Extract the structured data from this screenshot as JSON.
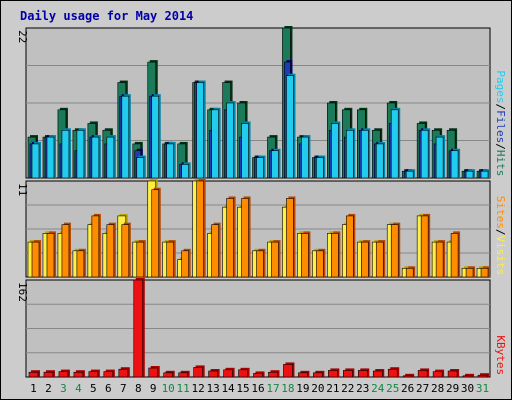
{
  "title": "Daily usage for May 2014",
  "colors": {
    "hits": "#1a7a5a",
    "files": "#1e3cb4",
    "pages": "#22ccee",
    "visits": "#ffee44",
    "sites": "#ff8c00",
    "kbytes": "#ee1111",
    "weekend_day": "#118844",
    "weekday": "#000000"
  },
  "chart_data": [
    {
      "type": "bar",
      "title": "Daily usage for May 2014",
      "categories": [
        "1",
        "2",
        "3",
        "4",
        "5",
        "6",
        "7",
        "8",
        "9",
        "10",
        "11",
        "12",
        "13",
        "14",
        "15",
        "16",
        "17",
        "18",
        "19",
        "20",
        "21",
        "22",
        "23",
        "24",
        "25",
        "26",
        "27",
        "28",
        "29",
        "30",
        "31"
      ],
      "ylim": [
        0,
        22
      ],
      "axis_max_label": "22",
      "legend": [
        "Hits",
        "Files",
        "Pages"
      ],
      "legend_sep": "/",
      "series": [
        {
          "name": "Hits",
          "values": [
            6,
            6,
            10,
            7,
            8,
            7,
            14,
            5,
            17,
            5,
            5,
            14,
            10,
            14,
            11,
            3,
            6,
            22,
            6,
            3,
            11,
            10,
            10,
            7,
            11,
            1,
            8,
            7,
            7,
            1,
            1
          ]
        },
        {
          "name": "Files",
          "values": [
            5,
            6,
            5,
            4,
            6,
            5,
            12,
            4,
            12,
            5,
            2,
            14,
            7,
            10,
            6,
            3,
            4,
            17,
            5,
            3,
            7,
            6,
            7,
            5,
            8,
            1,
            7,
            5,
            4,
            1,
            1
          ]
        },
        {
          "name": "Pages",
          "values": [
            5,
            6,
            7,
            7,
            6,
            6,
            12,
            3,
            12,
            5,
            2,
            14,
            10,
            11,
            8,
            3,
            4,
            15,
            6,
            3,
            8,
            7,
            7,
            5,
            10,
            1,
            7,
            6,
            4,
            1,
            1
          ]
        }
      ]
    },
    {
      "type": "bar",
      "ylim": [
        0,
        11
      ],
      "axis_max_label": "11",
      "legend": [
        "Sites",
        "Visits"
      ],
      "legend_sep": "/",
      "series": [
        {
          "name": "Visits",
          "values": [
            4,
            5,
            5,
            3,
            6,
            5,
            7,
            4,
            11,
            4,
            2,
            11,
            5,
            8,
            8,
            3,
            4,
            8,
            5,
            3,
            5,
            6,
            4,
            4,
            6,
            1,
            7,
            4,
            4,
            1,
            1
          ]
        },
        {
          "name": "Sites",
          "values": [
            4,
            5,
            6,
            3,
            7,
            6,
            6,
            4,
            10,
            4,
            3,
            11,
            6,
            9,
            9,
            3,
            4,
            9,
            5,
            3,
            5,
            7,
            4,
            4,
            6,
            1,
            7,
            4,
            5,
            1,
            1
          ]
        }
      ]
    },
    {
      "type": "bar",
      "ylim": [
        0,
        162
      ],
      "axis_max_label": "162",
      "legend": [
        "KBytes"
      ],
      "series": [
        {
          "name": "KBytes",
          "values": [
            8,
            8,
            9,
            8,
            9,
            9,
            13,
            162,
            15,
            7,
            7,
            16,
            10,
            12,
            12,
            6,
            8,
            21,
            7,
            7,
            11,
            11,
            11,
            10,
            13,
            2,
            11,
            9,
            10,
            2,
            3
          ]
        }
      ]
    }
  ]
}
